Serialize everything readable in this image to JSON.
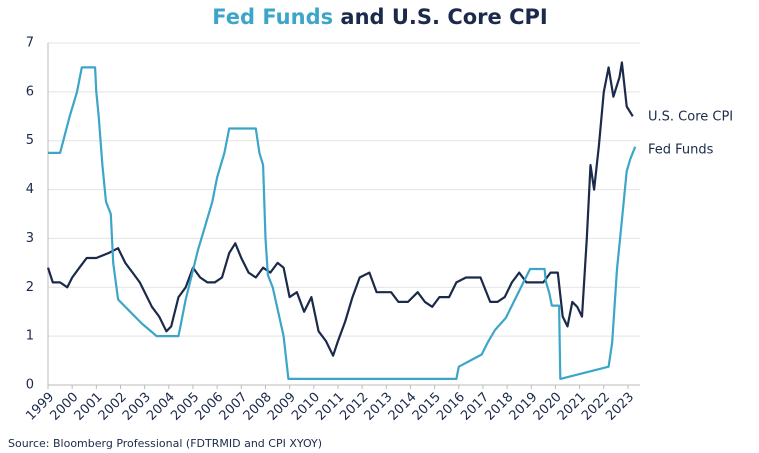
{
  "chart_data": {
    "type": "line",
    "title": [
      {
        "text": "Fed Funds",
        "color": "#3ca5c8"
      },
      {
        "text": " and U.S. Core CPI",
        "color": "#1b2a4a"
      }
    ],
    "source": "Source: Bloomberg Professional (FDTRMID and CPI XYOY)",
    "xlim": [
      1999,
      2023.5
    ],
    "xticks": [
      1999,
      2000,
      2001,
      2002,
      2003,
      2004,
      2005,
      2006,
      2007,
      2008,
      2009,
      2010,
      2011,
      2012,
      2013,
      2014,
      2015,
      2016,
      2017,
      2018,
      2019,
      2020,
      2021,
      2022,
      2023
    ],
    "ylim": [
      0,
      7
    ],
    "yticks": [
      0,
      1,
      2,
      3,
      4,
      5,
      6,
      7
    ],
    "grid": true,
    "series": [
      {
        "name": "U.S. Core CPI",
        "color": "#1b2a4a",
        "x": [
          1999.0,
          1999.2,
          1999.5,
          1999.8,
          2000.0,
          2000.3,
          2000.6,
          2001.0,
          2001.5,
          2001.9,
          2002.2,
          2002.5,
          2002.8,
          2003.0,
          2003.3,
          2003.6,
          2003.9,
          2004.1,
          2004.4,
          2004.7,
          2005.0,
          2005.3,
          2005.6,
          2005.9,
          2006.2,
          2006.5,
          2006.75,
          2007.0,
          2007.3,
          2007.6,
          2007.9,
          2008.2,
          2008.5,
          2008.75,
          2009.0,
          2009.3,
          2009.6,
          2009.9,
          2010.2,
          2010.5,
          2010.8,
          2011.0,
          2011.3,
          2011.6,
          2011.9,
          2012.3,
          2012.6,
          2012.9,
          2013.2,
          2013.5,
          2013.9,
          2014.3,
          2014.6,
          2014.9,
          2015.2,
          2015.6,
          2015.9,
          2016.3,
          2016.6,
          2016.9,
          2017.3,
          2017.6,
          2017.9,
          2018.2,
          2018.5,
          2018.8,
          2019.1,
          2019.5,
          2019.8,
          2020.1,
          2020.3,
          2020.5,
          2020.7,
          2020.9,
          2021.1,
          2021.3,
          2021.45,
          2021.6,
          2021.8,
          2022.0,
          2022.2,
          2022.4,
          2022.65,
          2022.75,
          2022.95,
          2023.2
        ],
        "values": [
          2.4,
          2.1,
          2.1,
          2.0,
          2.2,
          2.4,
          2.6,
          2.6,
          2.7,
          2.8,
          2.5,
          2.3,
          2.1,
          1.9,
          1.6,
          1.4,
          1.1,
          1.2,
          1.8,
          2.0,
          2.4,
          2.2,
          2.1,
          2.1,
          2.2,
          2.7,
          2.9,
          2.6,
          2.3,
          2.2,
          2.4,
          2.3,
          2.5,
          2.4,
          1.8,
          1.9,
          1.5,
          1.8,
          1.1,
          0.9,
          0.6,
          0.9,
          1.3,
          1.8,
          2.2,
          2.3,
          1.9,
          1.9,
          1.9,
          1.7,
          1.7,
          1.9,
          1.7,
          1.6,
          1.8,
          1.8,
          2.1,
          2.2,
          2.2,
          2.2,
          1.7,
          1.7,
          1.8,
          2.1,
          2.3,
          2.1,
          2.1,
          2.1,
          2.3,
          2.3,
          1.4,
          1.2,
          1.7,
          1.6,
          1.4,
          3.0,
          4.5,
          4.0,
          4.9,
          6.0,
          6.5,
          5.9,
          6.3,
          6.6,
          5.7,
          5.5
        ]
      },
      {
        "name": "Fed Funds",
        "color": "#3ca5c8",
        "x": [
          1999.0,
          1999.5,
          1999.9,
          2000.2,
          2000.4,
          2000.95,
          2001.0,
          2001.1,
          2001.25,
          2001.4,
          2001.6,
          2001.7,
          2001.9,
          2002.9,
          2003.5,
          2004.4,
          2004.5,
          2004.7,
          2004.95,
          2005.2,
          2005.5,
          2005.8,
          2006.0,
          2006.3,
          2006.5,
          2007.6,
          2007.75,
          2007.9,
          2008.0,
          2008.1,
          2008.3,
          2008.75,
          2008.95,
          2015.9,
          2016.0,
          2016.95,
          2017.2,
          2017.5,
          2017.95,
          2018.2,
          2018.45,
          2018.7,
          2018.95,
          2019.55,
          2019.6,
          2019.75,
          2019.85,
          2020.15,
          2020.2,
          2022.2,
          2022.35,
          2022.45,
          2022.55,
          2022.7,
          2022.85,
          2022.95,
          2023.1,
          2023.3
        ],
        "values": [
          4.75,
          4.75,
          5.5,
          6.0,
          6.5,
          6.5,
          6.0,
          5.5,
          4.5,
          3.75,
          3.5,
          2.5,
          1.75,
          1.25,
          1.0,
          1.0,
          1.25,
          1.75,
          2.25,
          2.75,
          3.25,
          3.75,
          4.25,
          4.75,
          5.25,
          5.25,
          4.75,
          4.5,
          3.0,
          2.25,
          2.0,
          1.0,
          0.125,
          0.125,
          0.375,
          0.625,
          0.875,
          1.125,
          1.375,
          1.625,
          1.875,
          2.125,
          2.375,
          2.375,
          2.125,
          1.875,
          1.625,
          1.625,
          0.125,
          0.375,
          0.875,
          1.625,
          2.375,
          3.125,
          3.875,
          4.375,
          4.625,
          4.875
        ]
      }
    ]
  }
}
